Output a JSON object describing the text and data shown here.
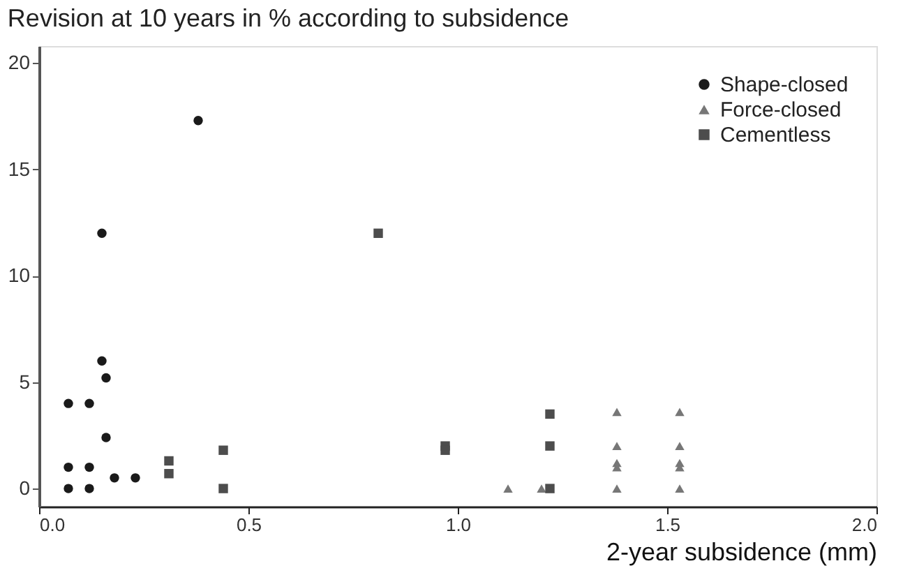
{
  "chart_data": {
    "type": "scatter",
    "title": "Revision at 10 years in % according to subsidence",
    "xlabel": "2-year subsidence (mm)",
    "xlim": [
      0,
      2
    ],
    "ylim": [
      -0.85,
      20.8
    ],
    "xticks": [
      {
        "value": 0,
        "label": "0.0"
      },
      {
        "value": 0.5,
        "label": "0.5"
      },
      {
        "value": 1,
        "label": "1.0"
      },
      {
        "value": 1.5,
        "label": "1.5"
      },
      {
        "value": 2,
        "label": "2.0"
      }
    ],
    "yticks": [
      0,
      5,
      10,
      15,
      20
    ],
    "grid": false,
    "legend": "top right",
    "series": [
      {
        "name": "Shape-closed",
        "color": "#1a1a1a",
        "marker": "circle",
        "x": [
          0.07,
          0.07,
          0.07,
          0.12,
          0.12,
          0.12,
          0.15,
          0.15,
          0.16,
          0.16,
          0.18,
          0.23,
          0.38
        ],
        "values": [
          4,
          1,
          0,
          4,
          1,
          0,
          12,
          6,
          5.2,
          2.4,
          0.5,
          0.5,
          17.3
        ]
      },
      {
        "name": "Force-closed",
        "color": "#777777",
        "marker": "triangle",
        "x": [
          1.12,
          1.2,
          1.38,
          1.38,
          1.38,
          1.38,
          1.38,
          1.53,
          1.53,
          1.53,
          1.53,
          1.53
        ],
        "values": [
          0,
          0,
          3.6,
          2,
          1.2,
          1,
          0,
          3.6,
          2,
          1.2,
          1,
          0
        ]
      },
      {
        "name": "Cementless",
        "color": "#4d4d4d",
        "marker": "square",
        "x": [
          0.31,
          0.31,
          0.44,
          0.44,
          0.81,
          0.97,
          0.97,
          1.22,
          1.22,
          1.22
        ],
        "values": [
          1.3,
          0.7,
          1.8,
          0,
          12,
          2,
          1.8,
          3.5,
          2,
          0
        ]
      }
    ]
  }
}
